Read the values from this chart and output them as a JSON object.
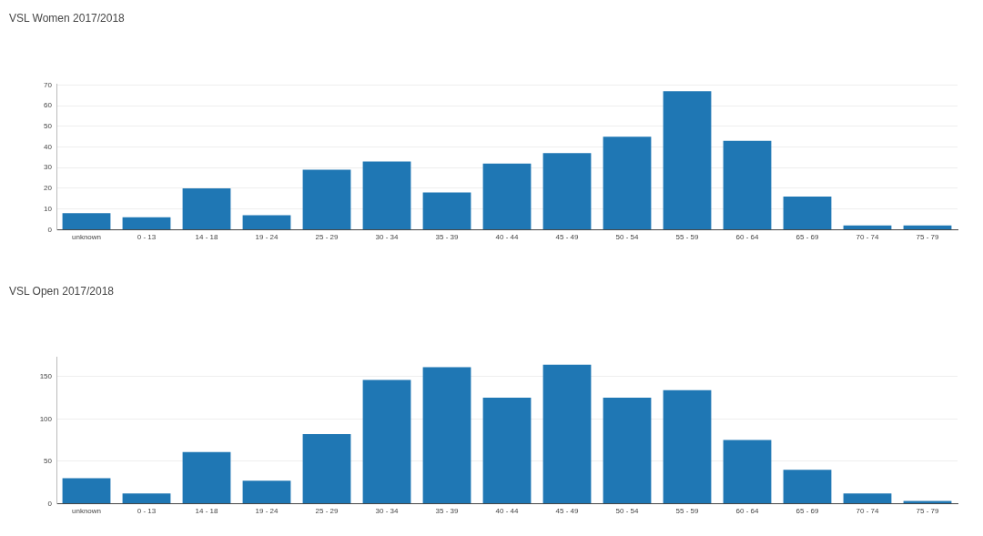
{
  "chart_data": [
    {
      "type": "bar",
      "title": "VSL Women 2017/2018",
      "categories": [
        "unknown",
        "0 - 13",
        "14 - 18",
        "19 - 24",
        "25 - 29",
        "30 - 34",
        "35 - 39",
        "40 - 44",
        "45 - 49",
        "50 - 54",
        "55 - 59",
        "60 - 64",
        "65 - 69",
        "70 - 74",
        "75 - 79"
      ],
      "values": [
        8,
        6,
        20,
        7,
        29,
        33,
        18,
        32,
        37,
        45,
        67,
        43,
        16,
        2,
        2
      ],
      "color": "#1f77b4",
      "ylim": [
        0,
        70.4
      ],
      "yticks": [
        0,
        10,
        20,
        30,
        40,
        50,
        60,
        70
      ],
      "grid": "y"
    },
    {
      "type": "bar",
      "title": "VSL Open 2017/2018",
      "categories": [
        "unknown",
        "0 - 13",
        "14 - 18",
        "19 - 24",
        "25 - 29",
        "30 - 34",
        "35 - 39",
        "40 - 44",
        "45 - 49",
        "50 - 54",
        "55 - 59",
        "60 - 64",
        "65 - 69",
        "70 - 74",
        "75 - 79"
      ],
      "values": [
        30,
        12,
        61,
        27,
        82,
        146,
        161,
        125,
        164,
        125,
        134,
        75,
        40,
        12,
        3
      ],
      "color": "#1f77b4",
      "ylim": [
        0,
        173
      ],
      "yticks": [
        0,
        50,
        100,
        150
      ],
      "grid": "y"
    }
  ]
}
